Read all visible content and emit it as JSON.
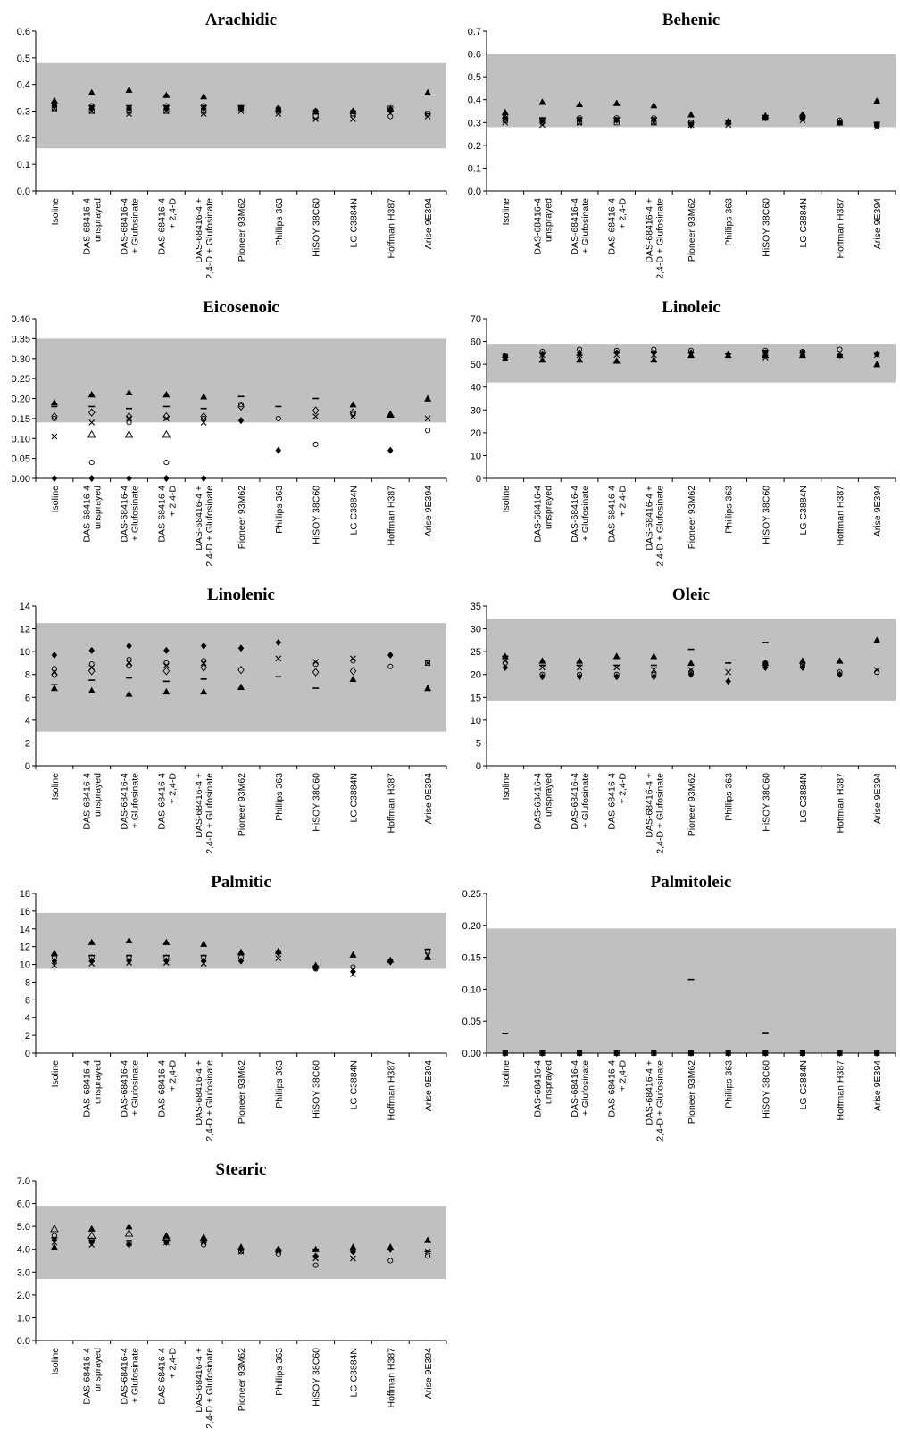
{
  "categories": [
    [
      "Isoline"
    ],
    [
      "DAS-68416-4",
      "unsprayed"
    ],
    [
      "DAS-68416-4",
      "+ Glufosinate"
    ],
    [
      "DAS-68416-4",
      "+ 2,4-D"
    ],
    [
      "DAS-68416-4 +",
      "2,4-D + Glufosinate"
    ],
    [
      "Pioneer 93M62"
    ],
    [
      "Phillips 363"
    ],
    [
      "HiSOY 38C60"
    ],
    [
      "LG C3884N"
    ],
    [
      "Hoffman H387"
    ],
    [
      "Arise 9E394"
    ]
  ],
  "colors": {
    "band": "#c0c0c0",
    "marker": "#000000"
  },
  "chart_data": [
    {
      "type": "scatter",
      "title": "Arachidic",
      "ylim": [
        0,
        0.6
      ],
      "yticks": [
        "0.0",
        "0.1",
        "0.2",
        "0.3",
        "0.4",
        "0.5",
        "0.6"
      ],
      "reference_range": [
        0.16,
        0.48
      ],
      "series": [
        {
          "marker": "triangle",
          "values": [
            0.34,
            0.37,
            0.38,
            0.36,
            0.355,
            null,
            null,
            null,
            0.3,
            0.31,
            0.37
          ]
        },
        {
          "marker": "diamond",
          "values": [
            0.32,
            0.31,
            0.31,
            0.31,
            0.31,
            0.31,
            0.31,
            0.3,
            0.3,
            0.3,
            null
          ]
        },
        {
          "marker": "circle",
          "values": [
            0.32,
            0.32,
            0.31,
            0.32,
            0.32,
            0.31,
            0.31,
            0.3,
            0.29,
            0.28,
            0.29
          ]
        },
        {
          "marker": "square",
          "values": [
            0.31,
            0.3,
            0.3,
            0.3,
            0.3,
            0.31,
            0.3,
            0.28,
            0.29,
            0.31,
            0.29
          ]
        },
        {
          "marker": "x",
          "values": [
            0.31,
            0.3,
            0.29,
            0.3,
            0.29,
            0.3,
            0.29,
            0.27,
            0.27,
            null,
            0.28
          ]
        },
        {
          "marker": "dash",
          "values": [
            0.33,
            0.32,
            0.32,
            0.32,
            0.32,
            0.32,
            0.3,
            0.29,
            0.3,
            0.3,
            0.29
          ]
        }
      ]
    },
    {
      "type": "scatter",
      "title": "Behenic",
      "ylim": [
        0,
        0.7
      ],
      "yticks": [
        "0.0",
        "0.1",
        "0.2",
        "0.3",
        "0.4",
        "0.5",
        "0.6",
        "0.7"
      ],
      "reference_range": [
        0.28,
        0.6
      ],
      "series": [
        {
          "marker": "triangle",
          "values": [
            0.345,
            0.39,
            0.38,
            0.385,
            0.375,
            0.335,
            0.305,
            0.33,
            0.335,
            0.3,
            0.395
          ]
        },
        {
          "marker": "diamond",
          "values": [
            0.32,
            0.31,
            0.31,
            0.31,
            0.31,
            0.29,
            0.3,
            0.32,
            0.32,
            0.3,
            0.29
          ]
        },
        {
          "marker": "circle",
          "values": [
            0.33,
            0.3,
            0.32,
            0.32,
            0.32,
            0.3,
            0.3,
            0.32,
            0.33,
            0.31,
            0.29
          ]
        },
        {
          "marker": "square",
          "values": [
            0.31,
            0.31,
            0.3,
            0.3,
            0.3,
            0.3,
            0.3,
            0.32,
            0.32,
            0.3,
            0.29
          ]
        },
        {
          "marker": "x",
          "values": [
            0.3,
            0.29,
            0.3,
            0.31,
            0.3,
            0.29,
            0.29,
            0.32,
            0.31,
            null,
            0.28
          ]
        },
        {
          "marker": "dash",
          "values": [
            0.32,
            0.32,
            0.32,
            0.32,
            0.32,
            0.3,
            0.31,
            0.33,
            0.33,
            0.3,
            0.3
          ]
        }
      ]
    },
    {
      "type": "scatter",
      "title": "Eicosenoic",
      "ylim": [
        0,
        0.4
      ],
      "yticks": [
        "0.00",
        "0.05",
        "0.10",
        "0.15",
        "0.20",
        "0.25",
        "0.30",
        "0.35",
        "0.40"
      ],
      "reference_range": [
        0.14,
        0.35
      ],
      "series": [
        {
          "marker": "triangle",
          "values": [
            0.19,
            0.21,
            0.215,
            0.21,
            0.205,
            null,
            null,
            null,
            0.185,
            0.16,
            0.2
          ]
        },
        {
          "marker": "diamond",
          "values": [
            0.0,
            0.0,
            0.0,
            0.0,
            0.0,
            0.145,
            0.07,
            null,
            null,
            0.07,
            null
          ]
        },
        {
          "marker": "circle",
          "values": [
            0.15,
            0.04,
            0.14,
            0.04,
            0.15,
            0.185,
            0.15,
            0.085,
            0.16,
            null,
            0.12
          ]
        },
        {
          "marker": "open-triangle",
          "values": [
            null,
            0.11,
            0.11,
            0.11,
            null,
            null,
            null,
            null,
            null,
            0.16,
            null
          ]
        },
        {
          "marker": "open-diamond",
          "values": [
            0.155,
            0.165,
            0.155,
            0.155,
            0.155,
            0.18,
            null,
            0.17,
            0.165,
            null,
            null
          ]
        },
        {
          "marker": "x",
          "values": [
            0.105,
            0.14,
            0.15,
            0.15,
            0.14,
            null,
            null,
            0.155,
            0.155,
            null,
            0.15
          ]
        },
        {
          "marker": "dash",
          "values": [
            0.18,
            0.18,
            0.175,
            0.18,
            0.175,
            0.205,
            0.18,
            0.2,
            null,
            null,
            null
          ]
        }
      ]
    },
    {
      "type": "scatter",
      "title": "Linoleic",
      "ylim": [
        0,
        70
      ],
      "yticks": [
        "0",
        "10",
        "20",
        "30",
        "40",
        "50",
        "60",
        "70"
      ],
      "reference_range": [
        42,
        59
      ],
      "series": [
        {
          "marker": "triangle",
          "values": [
            52.5,
            52,
            52,
            51.5,
            52,
            54,
            54,
            54,
            54,
            54,
            50
          ]
        },
        {
          "marker": "diamond",
          "values": [
            53.5,
            54.5,
            55,
            55,
            55,
            55,
            54.5,
            55,
            55,
            54,
            54.5
          ]
        },
        {
          "marker": "circle",
          "values": [
            54,
            55.5,
            56.5,
            56,
            56.5,
            56,
            null,
            56,
            55.5,
            56.5,
            54.5
          ]
        },
        {
          "marker": "x",
          "values": [
            53,
            54,
            54,
            54,
            54,
            null,
            null,
            53,
            55,
            null,
            54
          ]
        },
        {
          "marker": "dash",
          "values": [
            53,
            55,
            54,
            55,
            55.5,
            55,
            54.5,
            56,
            55,
            54,
            55
          ]
        }
      ]
    },
    {
      "type": "scatter",
      "title": "Linolenic",
      "ylim": [
        0,
        14
      ],
      "yticks": [
        "0",
        "2",
        "4",
        "6",
        "8",
        "10",
        "12",
        "14"
      ],
      "reference_range": [
        3,
        12.5
      ],
      "series": [
        {
          "marker": "triangle",
          "values": [
            6.8,
            6.6,
            6.3,
            6.5,
            6.5,
            6.9,
            null,
            null,
            7.6,
            null,
            6.8
          ]
        },
        {
          "marker": "diamond",
          "values": [
            9.7,
            10.1,
            10.5,
            10.1,
            10.5,
            10.3,
            10.8,
            null,
            null,
            9.7,
            null
          ]
        },
        {
          "marker": "open-diamond",
          "values": [
            8.0,
            8.3,
            8.8,
            8.3,
            8.6,
            8.4,
            null,
            8.2,
            8.3,
            null,
            null
          ]
        },
        {
          "marker": "circle",
          "values": [
            8.5,
            8.9,
            9.3,
            9.0,
            9.2,
            null,
            null,
            8.9,
            9.2,
            8.7,
            9.0
          ]
        },
        {
          "marker": "x",
          "values": [
            8.2,
            8.6,
            9.0,
            8.8,
            9.0,
            null,
            9.4,
            9.1,
            9.4,
            null,
            9.0
          ]
        },
        {
          "marker": "dash",
          "values": [
            7.1,
            7.5,
            7.7,
            7.4,
            7.6,
            null,
            7.8,
            6.8,
            null,
            null,
            null
          ]
        }
      ]
    },
    {
      "type": "scatter",
      "title": "Oleic",
      "ylim": [
        0,
        35
      ],
      "yticks": [
        "0",
        "5",
        "10",
        "15",
        "20",
        "25",
        "30",
        "35"
      ],
      "reference_range": [
        14.3,
        32.2
      ],
      "series": [
        {
          "marker": "triangle",
          "values": [
            24,
            23,
            23,
            24,
            24,
            22.5,
            null,
            22.5,
            23,
            23,
            27.5
          ]
        },
        {
          "marker": "diamond",
          "values": [
            21.5,
            19.5,
            19.5,
            19.5,
            19.5,
            20,
            18.5,
            21.5,
            21.5,
            20,
            null
          ]
        },
        {
          "marker": "circle",
          "values": [
            22.5,
            20,
            20,
            20,
            20,
            20.5,
            null,
            22.5,
            22,
            20.5,
            20.5
          ]
        },
        {
          "marker": "x",
          "values": [
            23,
            21.5,
            21.5,
            21.5,
            21,
            21,
            20.5,
            22,
            22,
            null,
            21
          ]
        },
        {
          "marker": "dash",
          "values": [
            24,
            22,
            22,
            22,
            22,
            25.5,
            22.5,
            27,
            null,
            null,
            null
          ]
        }
      ]
    },
    {
      "type": "scatter",
      "title": "Palmitic",
      "ylim": [
        0,
        18
      ],
      "yticks": [
        "0",
        "2",
        "4",
        "6",
        "8",
        "10",
        "12",
        "14",
        "16",
        "18"
      ],
      "reference_range": [
        9.5,
        15.8
      ],
      "series": [
        {
          "marker": "triangle",
          "values": [
            11.3,
            12.5,
            12.7,
            12.5,
            12.3,
            11.4,
            11.5,
            9.9,
            11.1,
            10.5,
            10.8
          ]
        },
        {
          "marker": "diamond",
          "values": [
            10.4,
            10.4,
            10.4,
            10.4,
            10.4,
            10.4,
            11.3,
            9.6,
            9.2,
            10.3,
            null
          ]
        },
        {
          "marker": "circle",
          "values": [
            10.8,
            10.8,
            10.8,
            10.8,
            10.8,
            10.8,
            11.4,
            9.5,
            9.7,
            10.4,
            11.5
          ]
        },
        {
          "marker": "x",
          "values": [
            9.9,
            10.1,
            10.2,
            10.2,
            10.1,
            null,
            10.7,
            null,
            8.9,
            null,
            11.0
          ]
        },
        {
          "marker": "dash",
          "values": [
            11.0,
            11.0,
            11.0,
            11.0,
            11.0,
            11.1,
            11.5,
            9.8,
            null,
            null,
            11.7
          ]
        }
      ]
    },
    {
      "type": "scatter",
      "title": "Palmitoleic",
      "ylim": [
        0,
        0.25
      ],
      "yticks": [
        "0.00",
        "0.05",
        "0.10",
        "0.15",
        "0.20",
        "0.25"
      ],
      "reference_range": [
        0.0,
        0.195
      ],
      "series": [
        {
          "marker": "diamond",
          "values": [
            0,
            0,
            0,
            0,
            0,
            0,
            0,
            0,
            0,
            0,
            0
          ]
        },
        {
          "marker": "square",
          "values": [
            0,
            0,
            0,
            0,
            0,
            0,
            0,
            0,
            0,
            0,
            0
          ]
        },
        {
          "marker": "dash",
          "values": [
            0.031,
            null,
            null,
            null,
            null,
            0.115,
            null,
            0.032,
            null,
            null,
            null
          ]
        }
      ]
    },
    {
      "type": "scatter",
      "title": "Stearic",
      "ylim": [
        0,
        7.0
      ],
      "yticks": [
        "0.0",
        "1.0",
        "2.0",
        "3.0",
        "4.0",
        "5.0",
        "6.0",
        "7.0"
      ],
      "reference_range": [
        2.7,
        5.9
      ],
      "series": [
        {
          "marker": "triangle",
          "values": [
            4.1,
            4.9,
            5.0,
            4.6,
            4.5,
            4.1,
            4.0,
            4.0,
            4.1,
            4.1,
            4.4
          ]
        },
        {
          "marker": "open-triangle",
          "values": [
            4.9,
            4.6,
            4.7,
            4.5,
            4.5,
            null,
            null,
            null,
            null,
            null,
            null
          ]
        },
        {
          "marker": "diamond",
          "values": [
            4.4,
            4.3,
            4.2,
            4.3,
            4.4,
            4.0,
            4.0,
            3.7,
            3.9,
            4.0,
            null
          ]
        },
        {
          "marker": "circle",
          "values": [
            4.6,
            4.4,
            4.3,
            4.4,
            4.2,
            3.9,
            3.8,
            3.3,
            3.9,
            3.5,
            3.7
          ]
        },
        {
          "marker": "x",
          "values": [
            4.3,
            4.2,
            4.3,
            4.3,
            4.3,
            3.9,
            3.9,
            3.6,
            3.6,
            null,
            3.9
          ]
        },
        {
          "marker": "dash",
          "values": [
            4.5,
            4.4,
            4.2,
            4.4,
            4.3,
            4.0,
            3.9,
            4.0,
            4.0,
            4.0,
            3.9
          ]
        }
      ]
    }
  ]
}
